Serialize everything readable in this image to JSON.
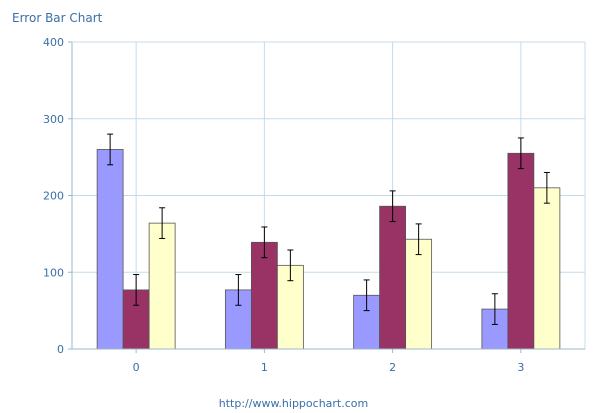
{
  "header": {
    "title": "Error Bar Chart"
  },
  "footer": {
    "link_text": "http://www.hippochart.com"
  },
  "chart_data": {
    "type": "bar",
    "title": "Error Bar Chart",
    "categories": [
      "0",
      "1",
      "2",
      "3"
    ],
    "ylim": [
      0,
      400
    ],
    "yticks": [
      "0",
      "100",
      "200",
      "300",
      "400"
    ],
    "grid": true,
    "legend": "none",
    "series": [
      {
        "color": "#9999ff",
        "values": [
          260,
          77,
          70,
          52
        ],
        "error": [
          20,
          20,
          20,
          20
        ]
      },
      {
        "color": "#993366",
        "values": [
          77,
          139,
          186,
          255
        ],
        "error": [
          20,
          20,
          20,
          20
        ]
      },
      {
        "color": "#ffffcc",
        "values": [
          164,
          109,
          143,
          210
        ],
        "error": [
          20,
          20,
          20,
          20
        ]
      }
    ]
  }
}
